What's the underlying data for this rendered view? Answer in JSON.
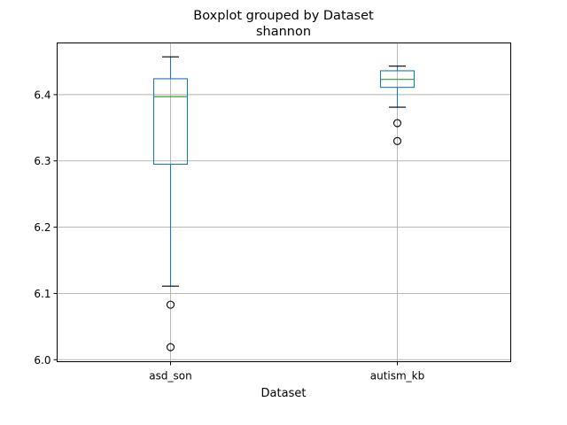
{
  "chart_data": {
    "type": "boxplot",
    "title": "Boxplot grouped by Dataset",
    "subtitle": "shannon",
    "xlabel": "Dataset",
    "ylabel": "",
    "categories": [
      "asd_son",
      "autism_kb"
    ],
    "ylim": [
      5.997,
      6.478
    ],
    "yticks": [
      6.0,
      6.1,
      6.2,
      6.3,
      6.4
    ],
    "ytick_labels": [
      "6.0",
      "6.1",
      "6.2",
      "6.3",
      "6.4"
    ],
    "grid": true,
    "boxes": [
      {
        "category": "asd_son",
        "whisker_low": 6.111,
        "q1": 6.295,
        "median": 6.397,
        "q3": 6.424,
        "whisker_high": 6.457,
        "outliers": [
          6.083,
          6.019
        ]
      },
      {
        "category": "autism_kb",
        "whisker_low": 6.381,
        "q1": 6.411,
        "median": 6.423,
        "q3": 6.436,
        "whisker_high": 6.443,
        "outliers": [
          6.357,
          6.33
        ]
      }
    ],
    "colors": {
      "box": "#1f77b4",
      "median": "#2ca02c",
      "whisker_cap": "#000000",
      "grid": "#b0b0b0",
      "outlier": "#000000"
    }
  }
}
